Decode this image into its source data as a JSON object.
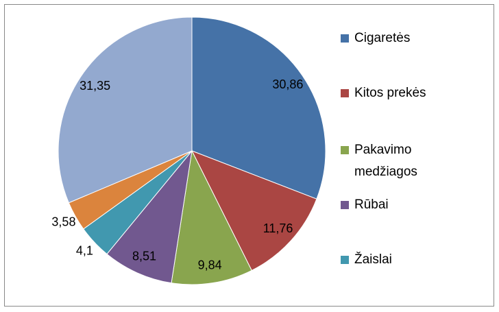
{
  "chart_data": {
    "type": "pie",
    "categories": [
      "Cigaretės",
      "Kitos prekės",
      "Pakavimo medžiagos",
      "Rūbai",
      "Žaislai",
      null,
      null
    ],
    "values": [
      30.86,
      11.76,
      9.84,
      8.51,
      4.1,
      3.58,
      31.35
    ],
    "value_labels": [
      "30,86",
      "11,76",
      "9,84",
      "8,51",
      "4,1",
      "3,58",
      "31,35"
    ],
    "colors": [
      "#4572a7",
      "#aa4643",
      "#89a54e",
      "#71588f",
      "#4198af",
      "#db843d",
      "#93a9cf"
    ],
    "legend": "right"
  }
}
